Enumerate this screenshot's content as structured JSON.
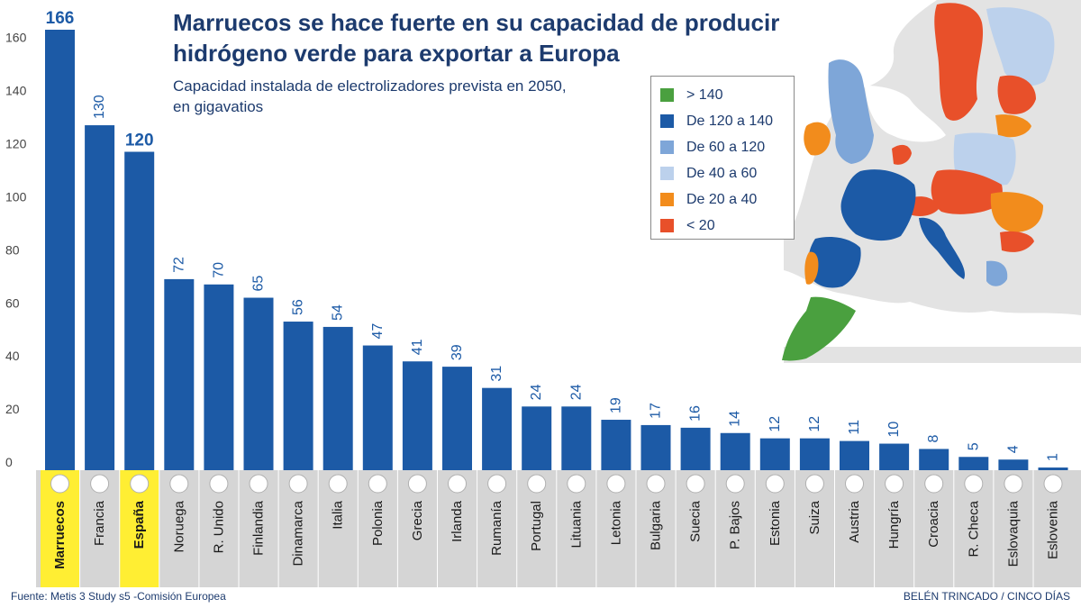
{
  "chart_data": {
    "type": "bar",
    "title": "Marruecos se hace fuerte en su capacidad de producir hidrógeno verde para exportar a Europa",
    "subtitle": "Capacidad instalada de electrolizadores prevista en 2050, en gigavatios",
    "categories": [
      "Marruecos",
      "Francia",
      "España",
      "Noruega",
      "R. Unido",
      "Finlandia",
      "Dinamarca",
      "Italia",
      "Polonia",
      "Grecia",
      "Irlanda",
      "Rumanía",
      "Portugal",
      "Lituania",
      "Letonia",
      "Bulgaria",
      "Suecia",
      "P. Bajos",
      "Estonia",
      "Suiza",
      "Austria",
      "Hungría",
      "Croacia",
      "R. Checa",
      "Eslovaquia",
      "Eslovenia"
    ],
    "values": [
      166,
      130,
      120,
      72,
      70,
      65,
      56,
      54,
      47,
      41,
      39,
      31,
      24,
      24,
      19,
      17,
      16,
      14,
      12,
      12,
      11,
      10,
      8,
      5,
      4,
      1
    ],
    "highlighted": [
      "Marruecos",
      "España"
    ],
    "y_ticks": [
      0,
      20,
      40,
      60,
      80,
      100,
      120,
      140,
      160
    ],
    "ylim": [
      0,
      166
    ],
    "grid": false,
    "xlabel": "",
    "ylabel": "",
    "bar_color": "#1c5aa6",
    "highlight_color": "#ffee33"
  },
  "legend": {
    "placement": "top-right",
    "items": [
      {
        "label": "> 140",
        "color": "#4aa03f"
      },
      {
        "label": "De 120 a 140",
        "color": "#1c5aa6"
      },
      {
        "label": "De 60 a 120",
        "color": "#7ea6d8"
      },
      {
        "label": "De 40 a 60",
        "color": "#bcd1ec"
      },
      {
        "label": "De 20 a 40",
        "color": "#f28c1c"
      },
      {
        "label": "< 20",
        "color": "#e8502a"
      }
    ]
  },
  "footer": {
    "source": "Fuente: Metis 3 Study s5 -Comisión Europea",
    "credit": "BELÉN TRINCADO / CINCO DÍAS"
  }
}
